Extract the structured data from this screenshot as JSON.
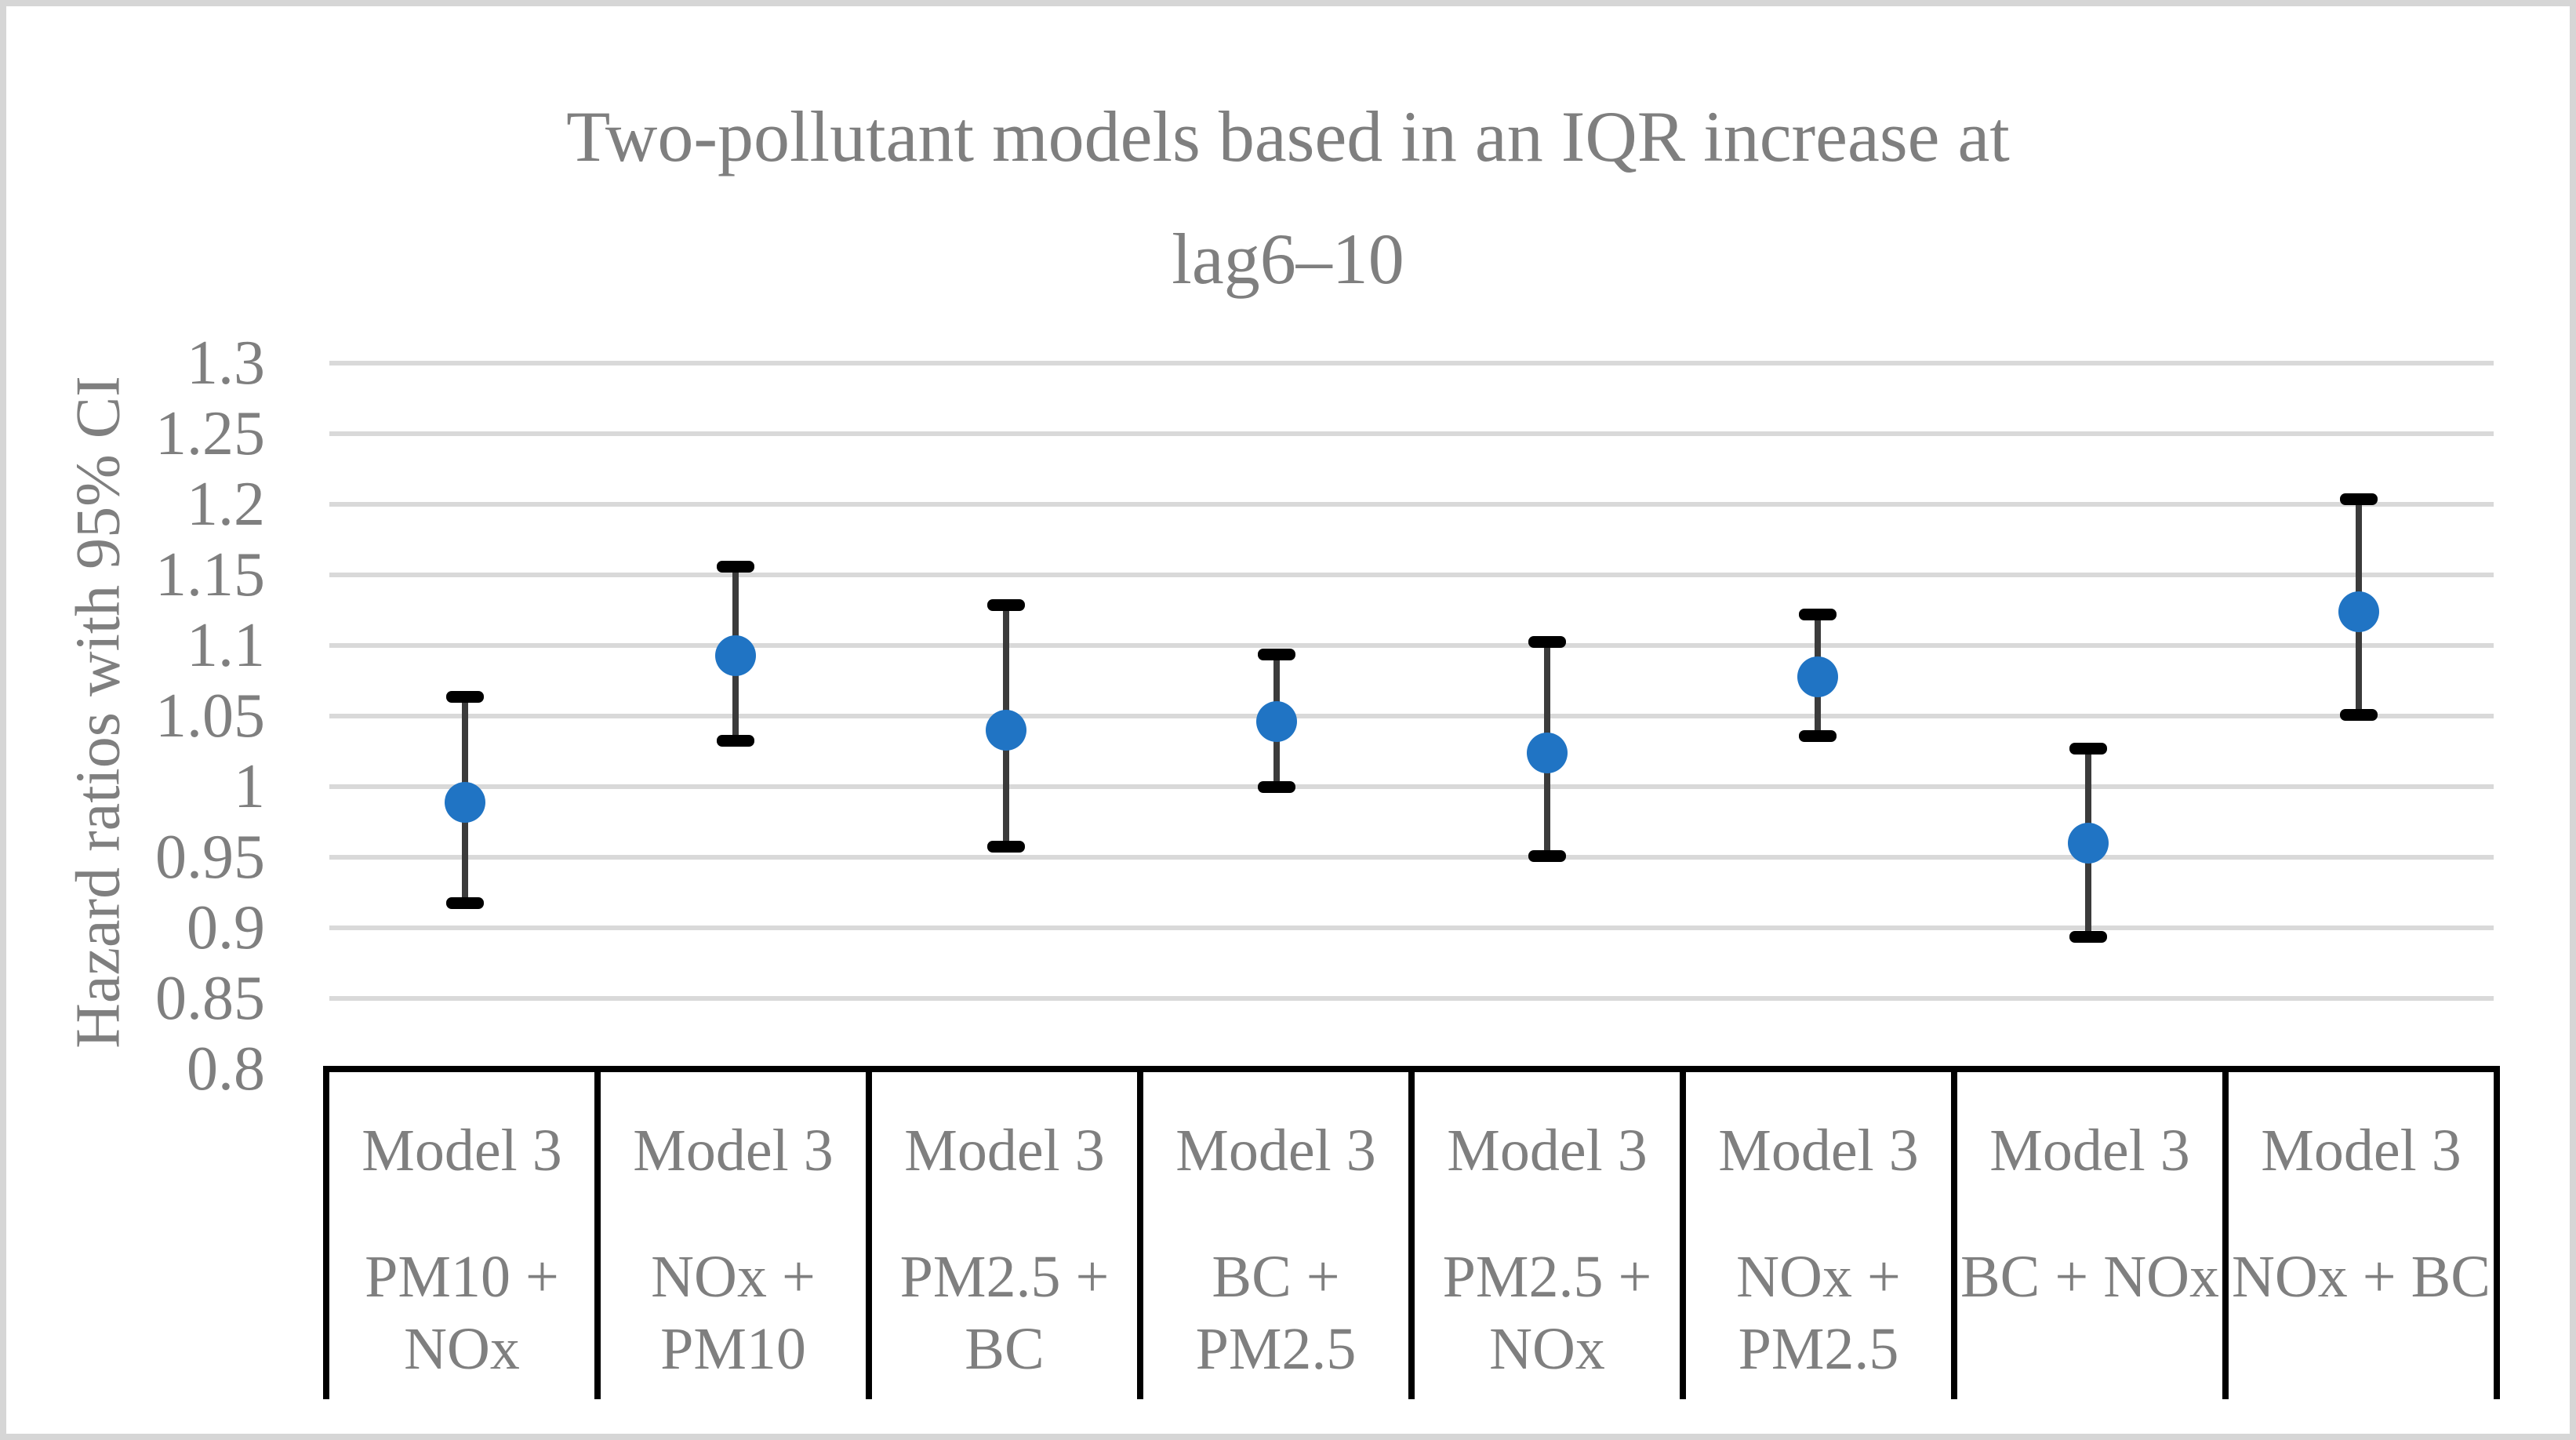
{
  "figure": {
    "background": "#ffffff",
    "frame_color": "#d6d6d6"
  },
  "chart_data": {
    "type": "scatter",
    "subtype": "point-estimates-with-95ci-error-bars",
    "title": "Two-pollutant models based in an IQR increase at lag6–10",
    "title_lines": [
      "Two-pollutant models based in an IQR increase at",
      "lag6–10"
    ],
    "xlabel": "",
    "ylabel": "Hazard ratios with 95% CI",
    "ylim": [
      0.8,
      1.3
    ],
    "ytick_step": 0.05,
    "yticks": [
      1.3,
      1.25,
      1.2,
      1.15,
      1.1,
      1.05,
      1,
      0.95,
      0.9,
      0.85,
      0.8
    ],
    "grid": true,
    "legend": "none",
    "categories": [
      {
        "model": "Model 3",
        "pollutant_lines": [
          "PM10 +",
          "NOx"
        ]
      },
      {
        "model": "Model 3",
        "pollutant_lines": [
          "NOx +",
          "PM10"
        ]
      },
      {
        "model": "Model 3",
        "pollutant_lines": [
          "PM2.5 +",
          "BC"
        ]
      },
      {
        "model": "Model 3",
        "pollutant_lines": [
          "BC +",
          "PM2.5"
        ]
      },
      {
        "model": "Model 3",
        "pollutant_lines": [
          "PM2.5 +",
          "NOx"
        ]
      },
      {
        "model": "Model 3",
        "pollutant_lines": [
          "NOx +",
          "PM2.5"
        ]
      },
      {
        "model": "Model 3",
        "pollutant_lines": [
          "BC + NOx"
        ]
      },
      {
        "model": "Model 3",
        "pollutant_lines": [
          "NOx + BC"
        ]
      }
    ],
    "points": [
      {
        "est": 0.989,
        "lo": 0.918,
        "hi": 1.064
      },
      {
        "est": 1.093,
        "lo": 1.033,
        "hi": 1.156
      },
      {
        "est": 1.04,
        "lo": 0.958,
        "hi": 1.129
      },
      {
        "est": 1.046,
        "lo": 1.0,
        "hi": 1.094
      },
      {
        "est": 1.024,
        "lo": 0.951,
        "hi": 1.103
      },
      {
        "est": 1.078,
        "lo": 1.036,
        "hi": 1.122
      },
      {
        "est": 0.96,
        "lo": 0.894,
        "hi": 1.027
      },
      {
        "est": 1.124,
        "lo": 1.051,
        "hi": 1.204
      }
    ],
    "colors": {
      "marker": "#2074c4",
      "whisker": "#3b3b3b",
      "cap": "#000000",
      "gridline": "#d9d9d9",
      "text": "#7f7f7f",
      "table_border": "#000000"
    }
  }
}
